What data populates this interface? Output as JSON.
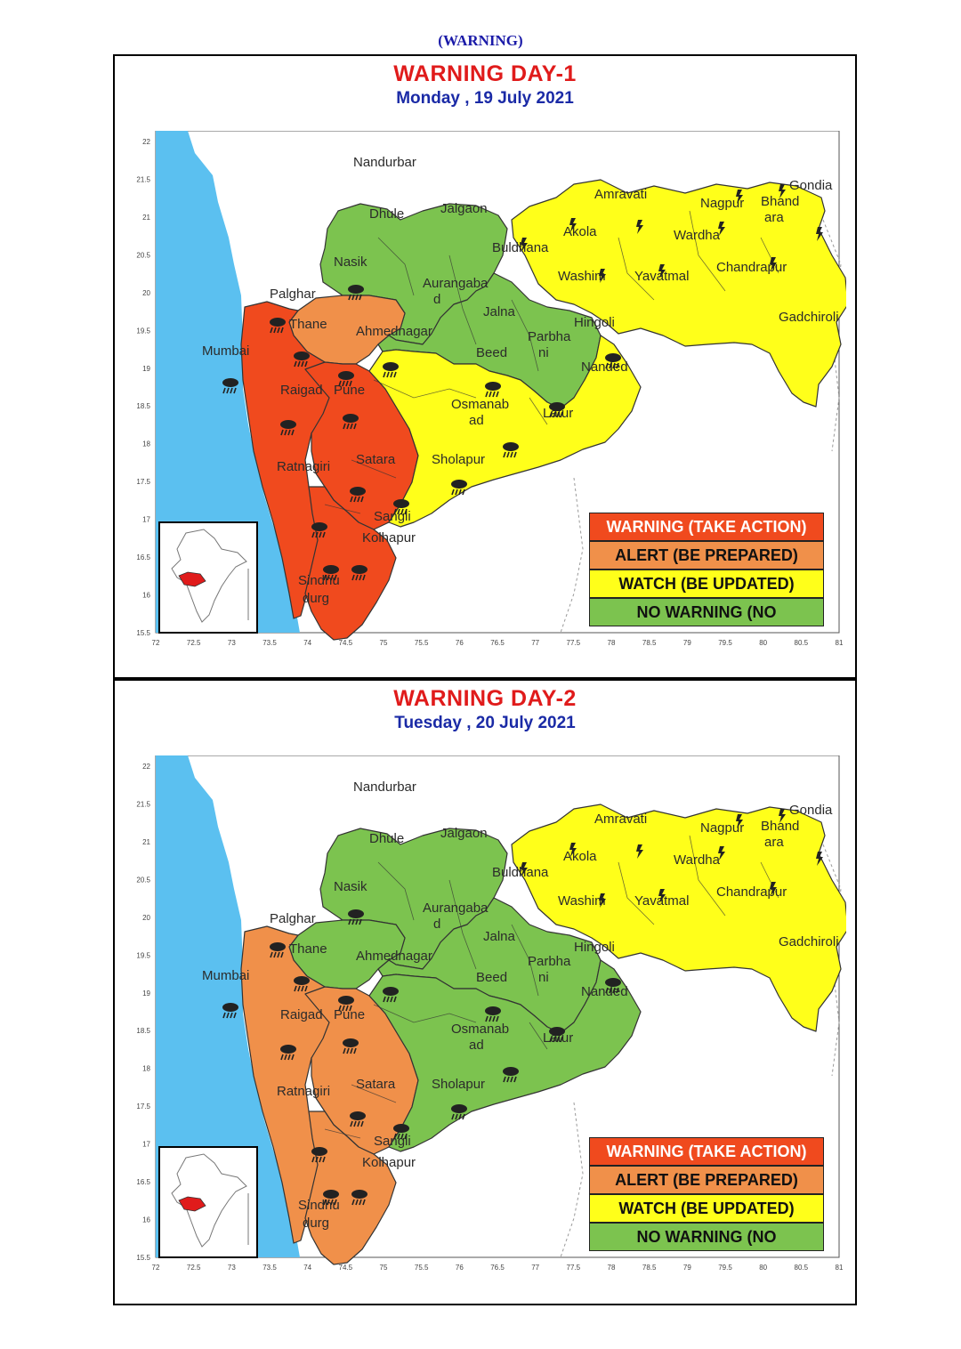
{
  "heading": "(WARNING)",
  "colors": {
    "sea": "#5bc0f0",
    "warning": "#f04a1e",
    "alert": "#f0904a",
    "watch": "#ffff1a",
    "no_warning": "#7cc34f",
    "land_outside": "#ffffff",
    "boundary": "#333333"
  },
  "legend": {
    "warning": "WARNING (TAKE ACTION)",
    "alert": "ALERT (BE PREPARED)",
    "watch": "WATCH (BE UPDATED)",
    "no_warning": "NO WARNING (NO"
  },
  "axes": {
    "x_ticks": [
      "72",
      "72.5",
      "73",
      "73.5",
      "74",
      "74.5",
      "75",
      "75.5",
      "76",
      "76.5",
      "77",
      "77.5",
      "78",
      "78.5",
      "79",
      "79.5",
      "80",
      "80.5",
      "81"
    ],
    "y_ticks": [
      "22",
      "21.5",
      "21",
      "20.5",
      "20",
      "19.5",
      "19",
      "18.5",
      "18",
      "17.5",
      "17",
      "16.5",
      "16",
      "15.5"
    ]
  },
  "districts": {
    "nandurbar": "Nandurbar",
    "dhule": "Dhule",
    "jalgaon": "Jalgaon",
    "nasik": "Nasik",
    "aurangabad_1": "Aurangaba",
    "aurangabad_2": "d",
    "jalna": "Jalna",
    "palghar": "Palghar",
    "thane": "Thane",
    "mumbai": "Mumbai",
    "raigad": "Raigad",
    "pune": "Pune",
    "ahmednagar": "Ahmednagar",
    "beed": "Beed",
    "parbhani_1": "Parbha",
    "parbhani_2": "ni",
    "hingoli": "Hingoli",
    "nanded": "Nanded",
    "osmanabad_1": "Osmanab",
    "osmanabad_2": "ad",
    "latur": "Latur",
    "sholapur": "Sholapur",
    "satara": "Satara",
    "ratnagiri": "Ratnagiri",
    "sangli": "Sangli",
    "kolhapur": "Kolhapur",
    "sindhudurg_1": "Sindhu",
    "sindhudurg_2": "durg",
    "buldhana": "Buldhana",
    "akola": "Akola",
    "amravati": "Amravati",
    "washim": "Washim",
    "yavatmal": "Yavatmal",
    "nagpur": "Nagpur",
    "wardha": "Wardha",
    "bhandara_1": "Bhand",
    "bhandara_2": "ara",
    "gondia": "Gondia",
    "chandrapur": "Chandrapur",
    "gadchiroli": "Gadchiroli"
  },
  "days": [
    {
      "title": "WARNING  DAY-1",
      "date": "Monday ,  19 July 2021",
      "levels": {
        "north": "no_warning",
        "marathwada_green": "no_warning",
        "nasik": "alert",
        "coast": "warning",
        "pune_satara": "warning",
        "kolhapur_sindhudurg": "warning",
        "central": "watch",
        "vidarbha": "watch"
      }
    },
    {
      "title": "WARNING  DAY-2",
      "date": "Tuesday ,  20 July 2021",
      "levels": {
        "north": "no_warning",
        "marathwada_green": "no_warning",
        "nasik": "no_warning",
        "coast": "alert",
        "pune_satara": "alert",
        "kolhapur_sindhudurg": "alert",
        "central": "no_warning",
        "vidarbha": "watch"
      }
    }
  ]
}
